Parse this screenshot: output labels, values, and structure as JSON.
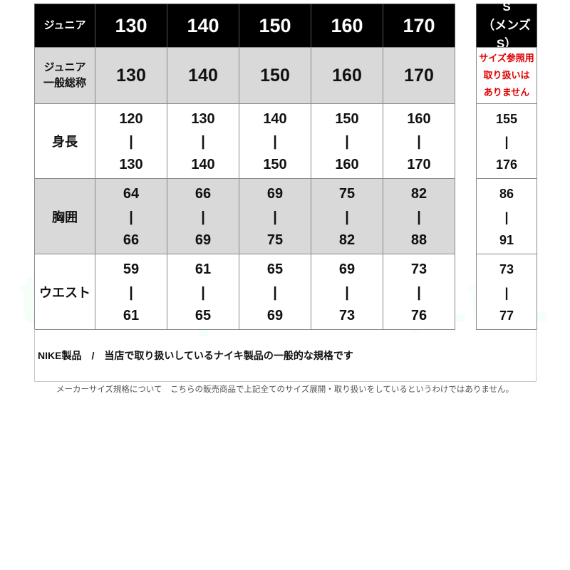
{
  "watermark": "takespo Co.,Ltd.",
  "header_row": {
    "label": "ジュニア",
    "sizes": [
      "130",
      "140",
      "150",
      "160",
      "170"
    ]
  },
  "general_row": {
    "label_line1": "ジュニア",
    "label_line2": "一般総称",
    "sizes": [
      "130",
      "140",
      "150",
      "160",
      "170"
    ]
  },
  "measurements": [
    {
      "label": "身長",
      "ranges": [
        [
          "120",
          "130"
        ],
        [
          "130",
          "140"
        ],
        [
          "140",
          "150"
        ],
        [
          "150",
          "160"
        ],
        [
          "160",
          "170"
        ]
      ],
      "s_range": [
        "155",
        "176"
      ]
    },
    {
      "label": "胸囲",
      "ranges": [
        [
          "64",
          "66"
        ],
        [
          "66",
          "69"
        ],
        [
          "69",
          "75"
        ],
        [
          "75",
          "82"
        ],
        [
          "82",
          "88"
        ]
      ],
      "s_range": [
        "86",
        "91"
      ]
    },
    {
      "label": "ウエスト",
      "ranges": [
        [
          "59",
          "61"
        ],
        [
          "61",
          "65"
        ],
        [
          "65",
          "69"
        ],
        [
          "69",
          "73"
        ],
        [
          "73",
          "76"
        ]
      ],
      "s_range": [
        "73",
        "77"
      ]
    }
  ],
  "separator": "|",
  "s_column": {
    "title": "S",
    "subtitle": "（メンズS）",
    "notice_lines": [
      "サイズ参照用",
      "取り扱いは",
      "ありません"
    ]
  },
  "footer": {
    "text": "NIKE製品　/　当店で取り扱いしているナイキ製品の一般的な規格です"
  },
  "note": "メーカーサイズ規格について　こちらの販売商品で上記全てのサイズ展開・取り扱いをしているというわけではありません。",
  "colors": {
    "header_bg": "#000000",
    "gray_row": "#d9d9d9",
    "notice_red": "#e00000"
  }
}
